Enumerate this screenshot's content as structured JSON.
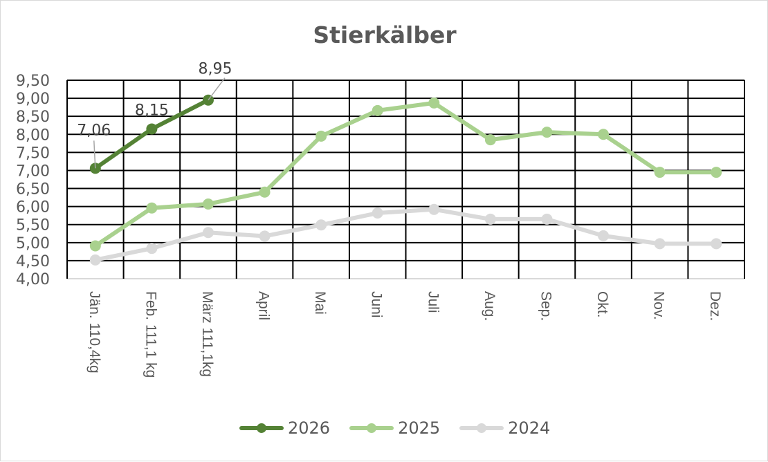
{
  "chart_data": {
    "type": "line",
    "title": "Stierkälber",
    "xlabel": "",
    "ylabel": "",
    "ylim": [
      4.0,
      9.5
    ],
    "y_ticks": [
      "4,00",
      "4,50",
      "5,00",
      "5,50",
      "6,00",
      "6,50",
      "7,00",
      "7,50",
      "8,00",
      "8,50",
      "9,00",
      "9,50"
    ],
    "grid": true,
    "legend_position": "bottom",
    "categories": [
      "Jän.  110,4kg",
      "Feb. 111,1 kg",
      "März 111,1kg",
      "April",
      "Mai",
      "Juni",
      "Juli",
      "Aug.",
      "Sep.",
      "Okt.",
      "Nov.",
      "Dez."
    ],
    "series": [
      {
        "name": "2026",
        "color": "#548235",
        "values": [
          7.06,
          8.15,
          8.95,
          null,
          null,
          null,
          null,
          null,
          null,
          null,
          null,
          null
        ],
        "data_labels": [
          "7,06",
          "8,15",
          "8,95"
        ]
      },
      {
        "name": "2025",
        "color": "#a9d18e",
        "values": [
          4.91,
          5.96,
          6.07,
          6.4,
          7.95,
          8.66,
          8.87,
          7.85,
          8.06,
          8.0,
          6.95,
          6.95
        ]
      },
      {
        "name": "2024",
        "color": "#d9d9d9",
        "values": [
          4.52,
          4.84,
          5.28,
          5.18,
          5.49,
          5.82,
          5.92,
          5.65,
          5.65,
          5.19,
          4.97,
          4.97
        ]
      }
    ]
  }
}
